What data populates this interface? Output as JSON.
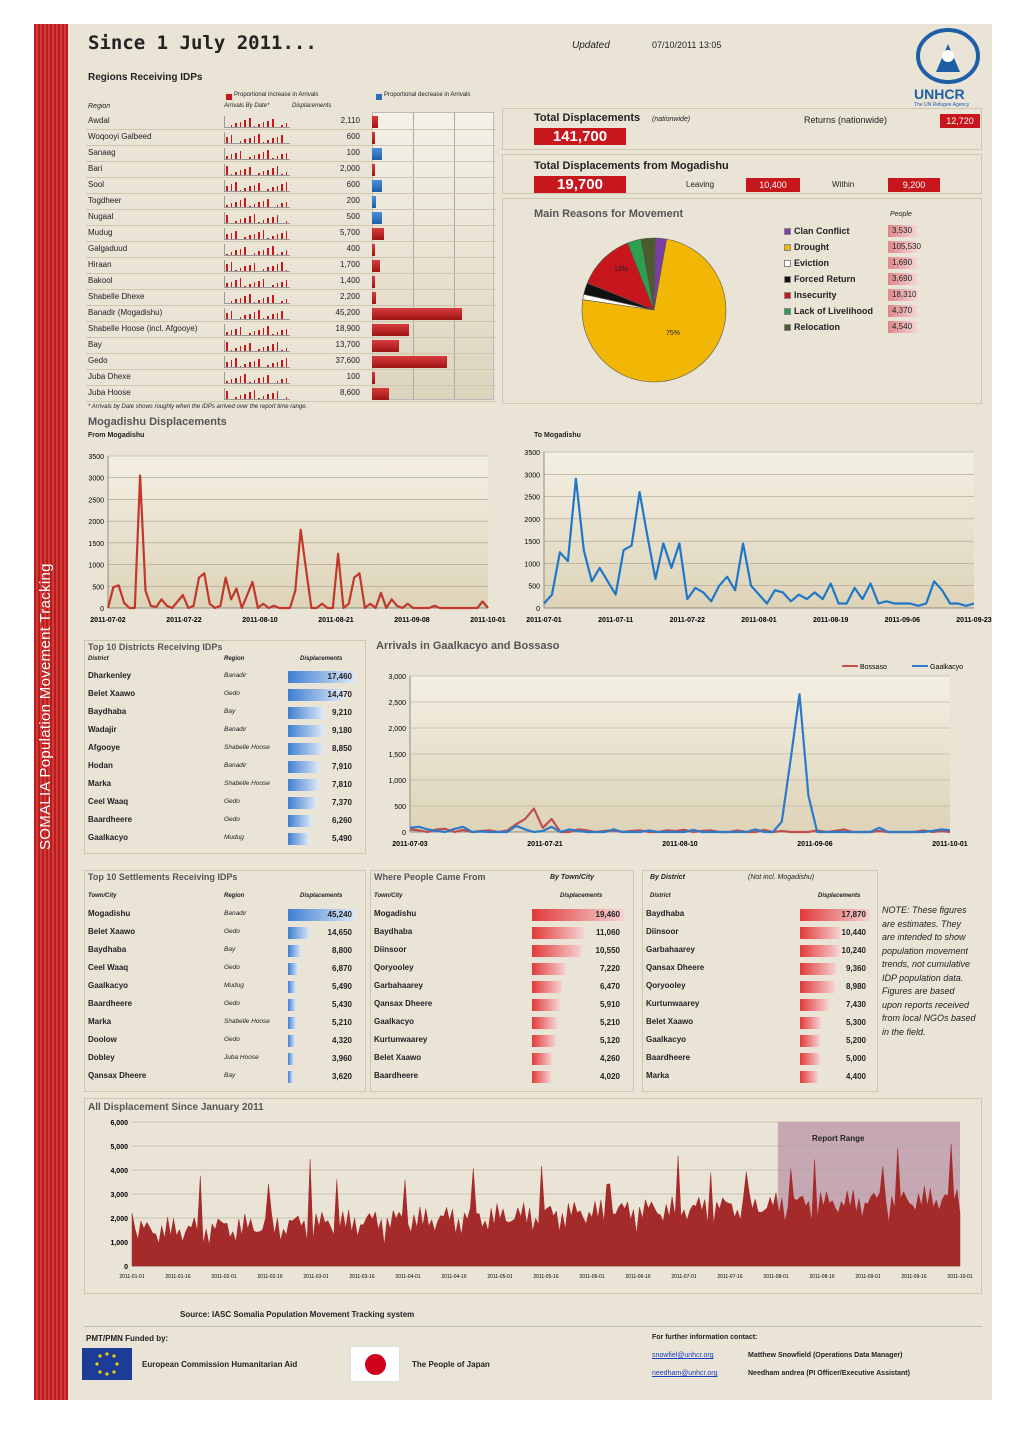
{
  "header": {
    "title": "Since 1 July 2011...",
    "updated_label": "Updated",
    "updated_value": "07/10/2011 13:05",
    "logo_text": "UNHCR",
    "logo_sub": "The UN Refugee Agency",
    "side_text": "SOMALIA   Population Movement Tracking"
  },
  "regions": {
    "title": "Regions Receiving IDPs",
    "legend_red": "Proportional increase in Arrivals",
    "legend_blue": "Proportional decrease in Arrivals",
    "col_region": "Region",
    "col_arrivals": "Arrivals By Date*",
    "col_displacements": "Displacements",
    "footnote": "* Arrivals by Date shows roughly when the IDPs arrived over the report time range.",
    "rows": [
      {
        "region": "Awdal",
        "value": "2,110",
        "change": 0.06,
        "dir": "red"
      },
      {
        "region": "Woqooyi Galbeed",
        "value": "600",
        "change": 0.01,
        "dir": "red"
      },
      {
        "region": "Sanaag",
        "value": "100",
        "change": 0.1,
        "dir": "blue"
      },
      {
        "region": "Bari",
        "value": "2,000",
        "change": 0.03,
        "dir": "red"
      },
      {
        "region": "Sool",
        "value": "600",
        "change": 0.1,
        "dir": "blue"
      },
      {
        "region": "Togdheer",
        "value": "200",
        "change": 0.04,
        "dir": "blue"
      },
      {
        "region": "Nugaal",
        "value": "500",
        "change": 0.1,
        "dir": "blue"
      },
      {
        "region": "Mudug",
        "value": "5,700",
        "change": 0.12,
        "dir": "red"
      },
      {
        "region": "Galgaduud",
        "value": "400",
        "change": 0.03,
        "dir": "red"
      },
      {
        "region": "Hiraan",
        "value": "1,700",
        "change": 0.08,
        "dir": "red"
      },
      {
        "region": "Bakool",
        "value": "1,400",
        "change": 0.02,
        "dir": "red"
      },
      {
        "region": "Shabelle Dhexe",
        "value": "2,200",
        "change": 0.04,
        "dir": "red"
      },
      {
        "region": "Banadir (Mogadishu)",
        "value": "45,200",
        "change": 0.9,
        "dir": "red"
      },
      {
        "region": "Shabelle Hoose (incl. Afgooye)",
        "value": "18,900",
        "change": 0.37,
        "dir": "red"
      },
      {
        "region": "Bay",
        "value": "13,700",
        "change": 0.27,
        "dir": "red"
      },
      {
        "region": "Gedo",
        "value": "37,600",
        "change": 0.75,
        "dir": "red"
      },
      {
        "region": "Juba Dhexe",
        "value": "100",
        "change": 0.01,
        "dir": "red"
      },
      {
        "region": "Juba Hoose",
        "value": "8,600",
        "change": 0.17,
        "dir": "red"
      }
    ]
  },
  "totals": {
    "total_label": "Total Displacements",
    "total_note": "(nationwide)",
    "total_value": "141,700",
    "returns_label": "Returns (nationwide)",
    "returns_value": "12,720",
    "mog_label": "Total Displacements from Mogadishu",
    "mog_value": "19,700",
    "leaving_label": "Leaving",
    "leaving_value": "10,400",
    "within_label": "Within",
    "within_value": "9,200"
  },
  "reasons": {
    "title": "Main Reasons for Movement",
    "people_header": "People",
    "pct_drought": "75%",
    "pct_insecurity": "13%",
    "items": [
      {
        "label": "Clan Conflict",
        "value": "3,530",
        "color": "#7a3ea6"
      },
      {
        "label": "Drought",
        "value": "105,530",
        "color": "#f2b705"
      },
      {
        "label": "Eviction",
        "value": "1,690",
        "color": "#ffffff"
      },
      {
        "label": "Forced Return",
        "value": "3,690",
        "color": "#111111"
      },
      {
        "label": "Insecurity",
        "value": "18,310",
        "color": "#c8161d"
      },
      {
        "label": "Lack of Livelihood",
        "value": "4,370",
        "color": "#2e9e4f"
      },
      {
        "label": "Relocation",
        "value": "4,540",
        "color": "#4d5a2e"
      }
    ]
  },
  "mogadishu": {
    "title": "Mogadishu Displacements",
    "from_label": "From Mogadishu",
    "to_label": "To Mogadishu"
  },
  "gaalkacyo": {
    "title": "Arrivals in Gaalkacyo and Bossaso",
    "legend_bossaso": "Bossaso",
    "legend_gaalkacyo": "Gaalkacyo"
  },
  "top_districts": {
    "title": "Top 10 Districts Receiving IDPs",
    "col1": "District",
    "col2": "Region",
    "col3": "Displacements",
    "rows": [
      [
        "Dharkenley",
        "Banadir",
        "17,460",
        1.0
      ],
      [
        "Belet Xaawo",
        "Gedo",
        "14,470",
        0.83
      ],
      [
        "Baydhaba",
        "Bay",
        "9,210",
        0.53
      ],
      [
        "Wadajir",
        "Banadir",
        "9,180",
        0.53
      ],
      [
        "Afgooye",
        "Shabelle Hoose",
        "8,850",
        0.51
      ],
      [
        "Hodan",
        "Banadir",
        "7,910",
        0.45
      ],
      [
        "Marka",
        "Shabelle Hoose",
        "7,810",
        0.45
      ],
      [
        "Ceel Waaq",
        "Gedo",
        "7,370",
        0.42
      ],
      [
        "Baardheere",
        "Gedo",
        "6,260",
        0.36
      ],
      [
        "Gaalkacyo",
        "Mudug",
        "5,490",
        0.31
      ]
    ]
  },
  "top_settlements": {
    "title": "Top 10 Settlements Receiving IDPs",
    "col1": "Town/City",
    "col2": "Region",
    "col3": "Displacements",
    "rows": [
      [
        "Mogadishu",
        "Banadir",
        "45,240",
        1.0
      ],
      [
        "Belet Xaawo",
        "Gedo",
        "14,650",
        0.32
      ],
      [
        "Baydhaba",
        "Bay",
        "8,800",
        0.19
      ],
      [
        "Ceel Waaq",
        "Gedo",
        "6,870",
        0.15
      ],
      [
        "Gaalkacyo",
        "Mudug",
        "5,490",
        0.12
      ],
      [
        "Baardheere",
        "Gedo",
        "5,430",
        0.12
      ],
      [
        "Marka",
        "Shabelle Hoose",
        "5,210",
        0.12
      ],
      [
        "Doolow",
        "Gedo",
        "4,320",
        0.1
      ],
      [
        "Dobley",
        "Juba Hoose",
        "3,960",
        0.09
      ],
      [
        "Qansax Dheere",
        "Bay",
        "3,620",
        0.08
      ]
    ]
  },
  "where_from": {
    "title": "Where People Came From",
    "by_town": "By Town/City",
    "by_district": "By District",
    "not_incl": "(Not incl. Mogadishu)",
    "col_town": "Town/City",
    "col_district": "District",
    "col_disp": "Displacements",
    "towns": [
      [
        "Mogadishu",
        "19,460",
        1.0
      ],
      [
        "Baydhaba",
        "11,060",
        0.57
      ],
      [
        "Diinsoor",
        "10,550",
        0.54
      ],
      [
        "Qoryooley",
        "7,220",
        0.37
      ],
      [
        "Garbahaarey",
        "6,470",
        0.33
      ],
      [
        "Qansax Dheere",
        "5,910",
        0.3
      ],
      [
        "Gaalkacyo",
        "5,210",
        0.27
      ],
      [
        "Kurtunwaarey",
        "5,120",
        0.26
      ],
      [
        "Belet Xaawo",
        "4,260",
        0.22
      ],
      [
        "Baardheere",
        "4,020",
        0.21
      ]
    ],
    "districts": [
      [
        "Baydhaba",
        "17,870",
        1.0
      ],
      [
        "Diinsoor",
        "10,440",
        0.58
      ],
      [
        "Garbahaarey",
        "10,240",
        0.57
      ],
      [
        "Qansax Dheere",
        "9,360",
        0.52
      ],
      [
        "Qoryooley",
        "8,980",
        0.5
      ],
      [
        "Kurtunwaarey",
        "7,430",
        0.42
      ],
      [
        "Belet Xaawo",
        "5,300",
        0.3
      ],
      [
        "Gaalkacyo",
        "5,200",
        0.29
      ],
      [
        "Baardheere",
        "5,000",
        0.28
      ],
      [
        "Marka",
        "4,400",
        0.25
      ]
    ]
  },
  "note": "NOTE: These figures are estimates. They are intended to show population movement trends, not cumulative IDP population data. Figures are based upon reports received from local NGOs based in the field.",
  "all": {
    "title": "All Displacement Since January 2011",
    "report_range": "Report Range"
  },
  "footer": {
    "source": "Source:  IASC Somalia Population Movement Tracking system",
    "funded": "PMT/PMN Funded by:",
    "eu": "European Commission Humanitarian Aid",
    "japan": "The People of Japan",
    "contact": "For further information contact:",
    "email1": "snowfiel@unhcr.org",
    "name1": "Matthew Snowfield (Operations Data Manager)",
    "email2": "needham@unhcr.org",
    "name2": "Needham andrea (PI Officer/Executive Assistant)"
  },
  "chart_data": [
    {
      "type": "pie",
      "title": "Main Reasons for Movement",
      "categories": [
        "Clan Conflict",
        "Drought",
        "Eviction",
        "Forced Return",
        "Insecurity",
        "Lack of Livelihood",
        "Relocation"
      ],
      "values": [
        3530,
        105530,
        1690,
        3690,
        18310,
        4370,
        4540
      ]
    },
    {
      "type": "line",
      "title": "From Mogadishu",
      "ylim": [
        0,
        3500
      ],
      "yticks": [
        0,
        500,
        1000,
        1500,
        2000,
        2500,
        3000,
        3500
      ],
      "xticks": [
        "2011-07-02",
        "2011-07-22",
        "2011-08-10",
        "2011-08-21",
        "2011-09-08",
        "2011-10-01"
      ],
      "color": "#c0392b",
      "values": [
        0,
        480,
        520,
        120,
        0,
        0,
        3050,
        400,
        50,
        20,
        200,
        50,
        0,
        150,
        300,
        0,
        50,
        700,
        800,
        100,
        0,
        50,
        700,
        200,
        450,
        0,
        300,
        600,
        0,
        100,
        0,
        50,
        0,
        0,
        0,
        400,
        1800,
        900,
        0,
        0,
        100,
        0,
        0,
        1250,
        0,
        100,
        700,
        800,
        0,
        100,
        0,
        350,
        0,
        200,
        50,
        0,
        100,
        0,
        0,
        0,
        0,
        50,
        0,
        0,
        0,
        0,
        0,
        0,
        0,
        0,
        150,
        0
      ]
    },
    {
      "type": "line",
      "title": "To Mogadishu",
      "ylim": [
        0,
        3500
      ],
      "yticks": [
        0,
        500,
        1000,
        1500,
        2000,
        2500,
        3000,
        3500
      ],
      "xticks": [
        "2011-07-01",
        "2011-07-11",
        "2011-07-22",
        "2011-08-01",
        "2011-08-19",
        "2011-09-06",
        "2011-09-23"
      ],
      "color": "#1f77c9",
      "values": [
        100,
        300,
        1250,
        1050,
        2900,
        1300,
        600,
        900,
        600,
        300,
        1300,
        1400,
        2600,
        1600,
        650,
        1450,
        900,
        1450,
        200,
        450,
        350,
        150,
        500,
        700,
        400,
        1450,
        500,
        300,
        100,
        400,
        350,
        150,
        300,
        200,
        350,
        200,
        550,
        100,
        100,
        450,
        200,
        550,
        100,
        150,
        100,
        100,
        100,
        50,
        100,
        600,
        400,
        100,
        100,
        50,
        100
      ]
    },
    {
      "type": "line",
      "title": "Arrivals in Gaalkacyo and Bossaso",
      "ylim": [
        0,
        3000
      ],
      "yticks": [
        0,
        500,
        1000,
        1500,
        2000,
        2500,
        3000
      ],
      "xticks": [
        "2011-07-03",
        "2011-07-21",
        "2011-08-10",
        "2011-09-06",
        "2011-10-01"
      ],
      "series": [
        {
          "name": "Bossaso",
          "color": "#c0504d",
          "values": [
            50,
            30,
            0,
            50,
            60,
            0,
            40,
            0,
            20,
            30,
            0,
            30,
            150,
            250,
            450,
            80,
            250,
            0,
            0,
            50,
            30,
            0,
            20,
            30,
            0,
            20,
            30,
            0,
            0,
            30,
            20,
            40,
            0,
            20,
            30,
            0,
            0,
            30,
            0,
            0,
            40,
            0,
            20,
            0,
            0,
            0,
            30,
            0,
            20,
            50,
            0,
            0,
            0,
            20,
            0,
            0,
            0,
            0,
            30,
            0,
            20,
            0
          ]
        },
        {
          "name": "Gaalkacyo",
          "color": "#2c7ac9",
          "values": [
            80,
            100,
            50,
            20,
            0,
            60,
            100,
            0,
            10,
            0,
            0,
            0,
            120,
            50,
            0,
            20,
            100,
            0,
            50,
            20,
            0,
            0,
            0,
            50,
            0,
            0,
            0,
            30,
            0,
            0,
            0,
            0,
            40,
            0,
            0,
            0,
            0,
            0,
            0,
            50,
            0,
            0,
            200,
            1400,
            2650,
            700,
            0,
            0,
            0,
            0,
            0,
            0,
            0,
            80,
            0,
            0,
            0,
            0,
            0,
            20,
            50,
            30
          ]
        }
      ]
    },
    {
      "type": "area",
      "title": "All Displacement Since January 2011",
      "ylim": [
        0,
        6000
      ],
      "yticks": [
        0,
        1000,
        2000,
        3000,
        4000,
        5000,
        6000
      ],
      "color": "#a52a2a",
      "xticks": [
        "2011-01-01",
        "2011-01-16",
        "2011-02-01",
        "2011-02-16",
        "2011-03-01",
        "2011-03-16",
        "2011-04-01",
        "2011-04-16",
        "2011-05-01",
        "2011-05-16",
        "2011-06-01",
        "2011-06-16",
        "2011-07-01",
        "2011-07-16",
        "2011-08-01",
        "2011-08-16",
        "2011-09-01",
        "2011-09-16",
        "2011-10-01"
      ],
      "report_range_start_fraction": 0.78
    }
  ]
}
